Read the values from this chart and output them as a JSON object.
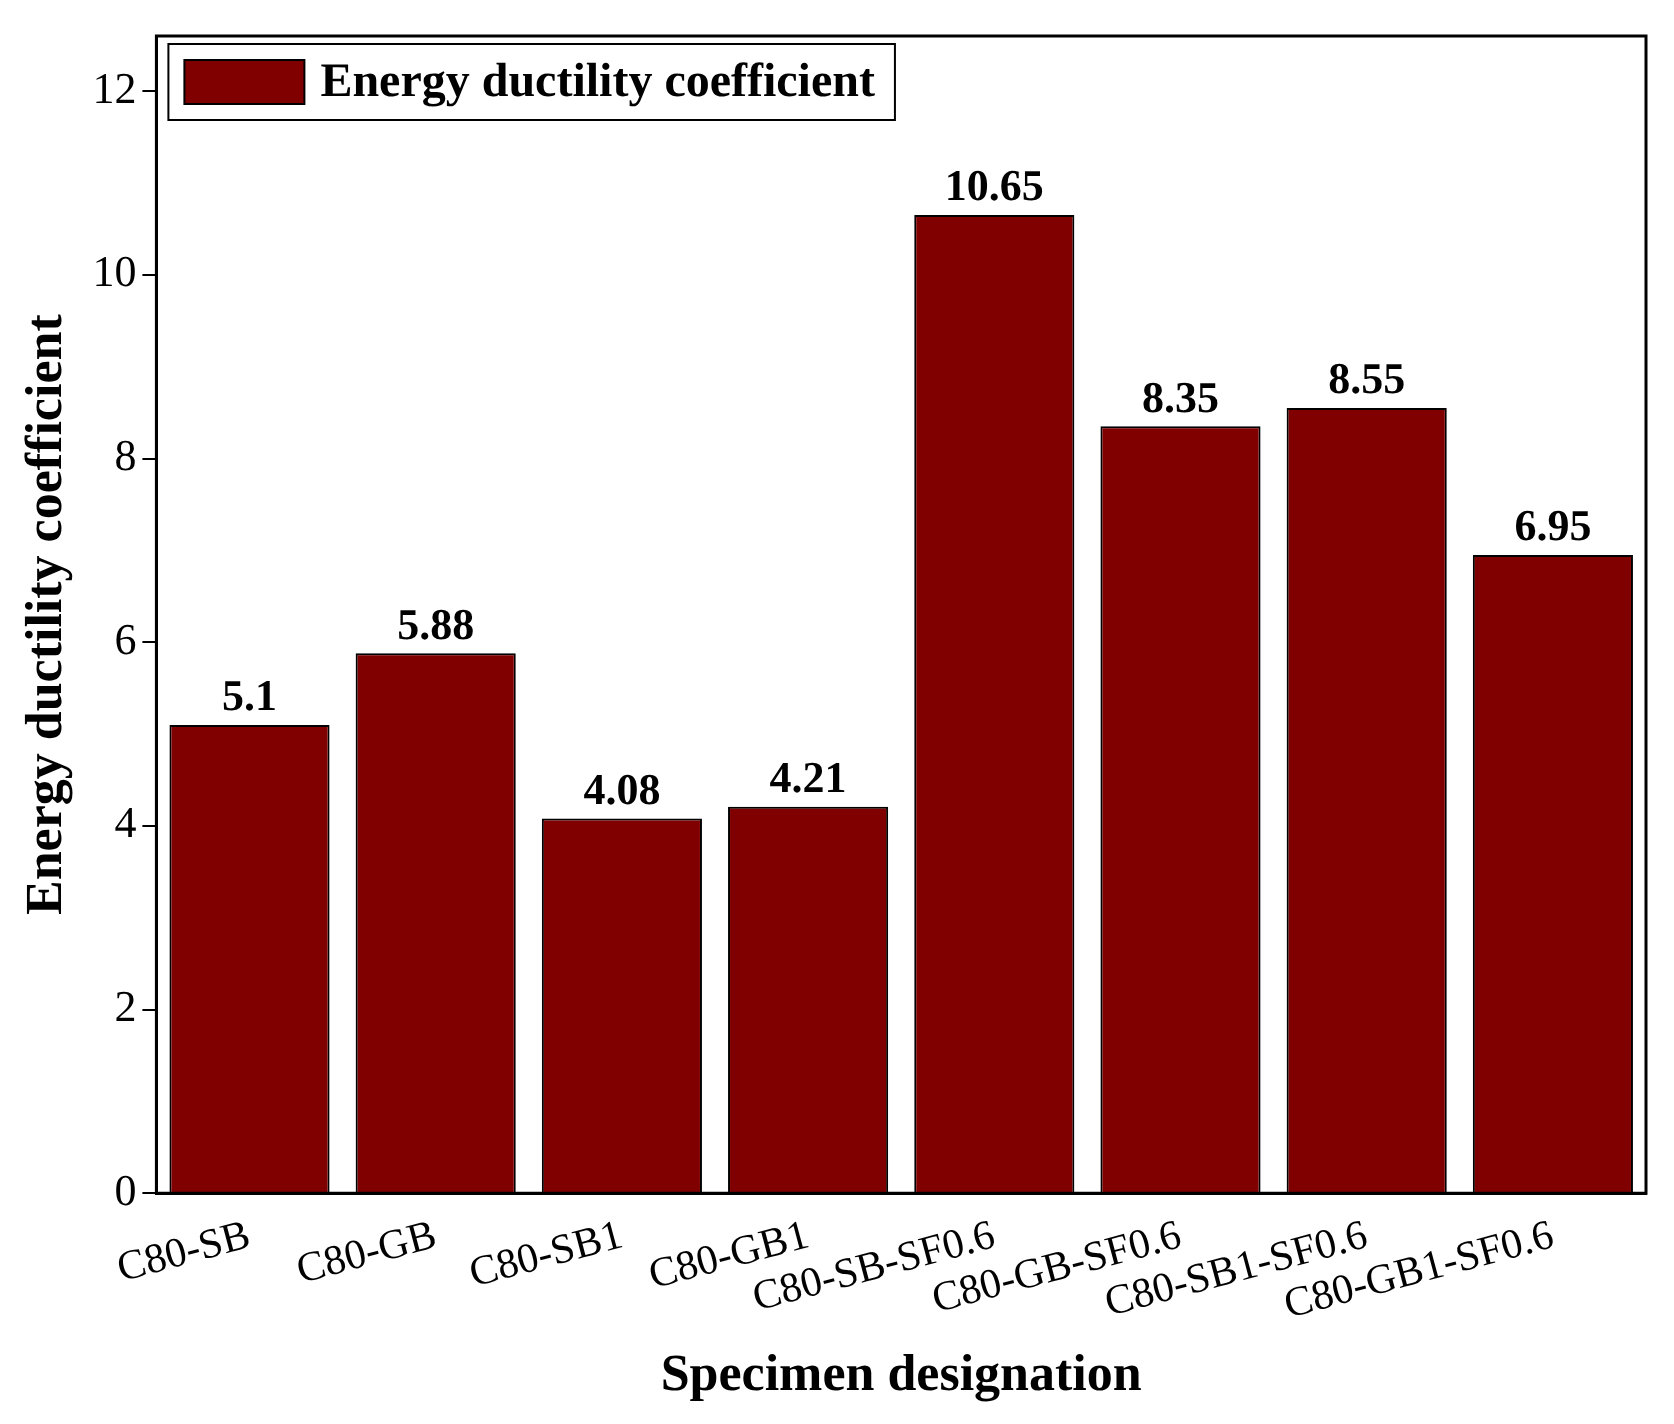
{
  "chart_data": {
    "type": "bar",
    "xlabel": "Specimen designation",
    "ylabel": "Energy ductility coefficient",
    "categories": [
      "C80-SB",
      "C80-GB",
      "C80-SB1",
      "C80-GB1",
      "C80-SB-SF0.6",
      "C80-GB-SF0.6",
      "C80-SB1-SF0.6",
      "C80-GB1-SF0.6"
    ],
    "series": [
      {
        "name": "Energy ductility coefficient",
        "color": "#800000",
        "values": [
          5.1,
          5.88,
          4.08,
          4.21,
          10.65,
          8.35,
          8.55,
          6.95
        ]
      }
    ],
    "ylim": [
      0,
      12.6
    ],
    "yticks": [
      0,
      2,
      4,
      6,
      8,
      10,
      12
    ],
    "data_labels": true,
    "grid": false,
    "legend": "top left"
  }
}
